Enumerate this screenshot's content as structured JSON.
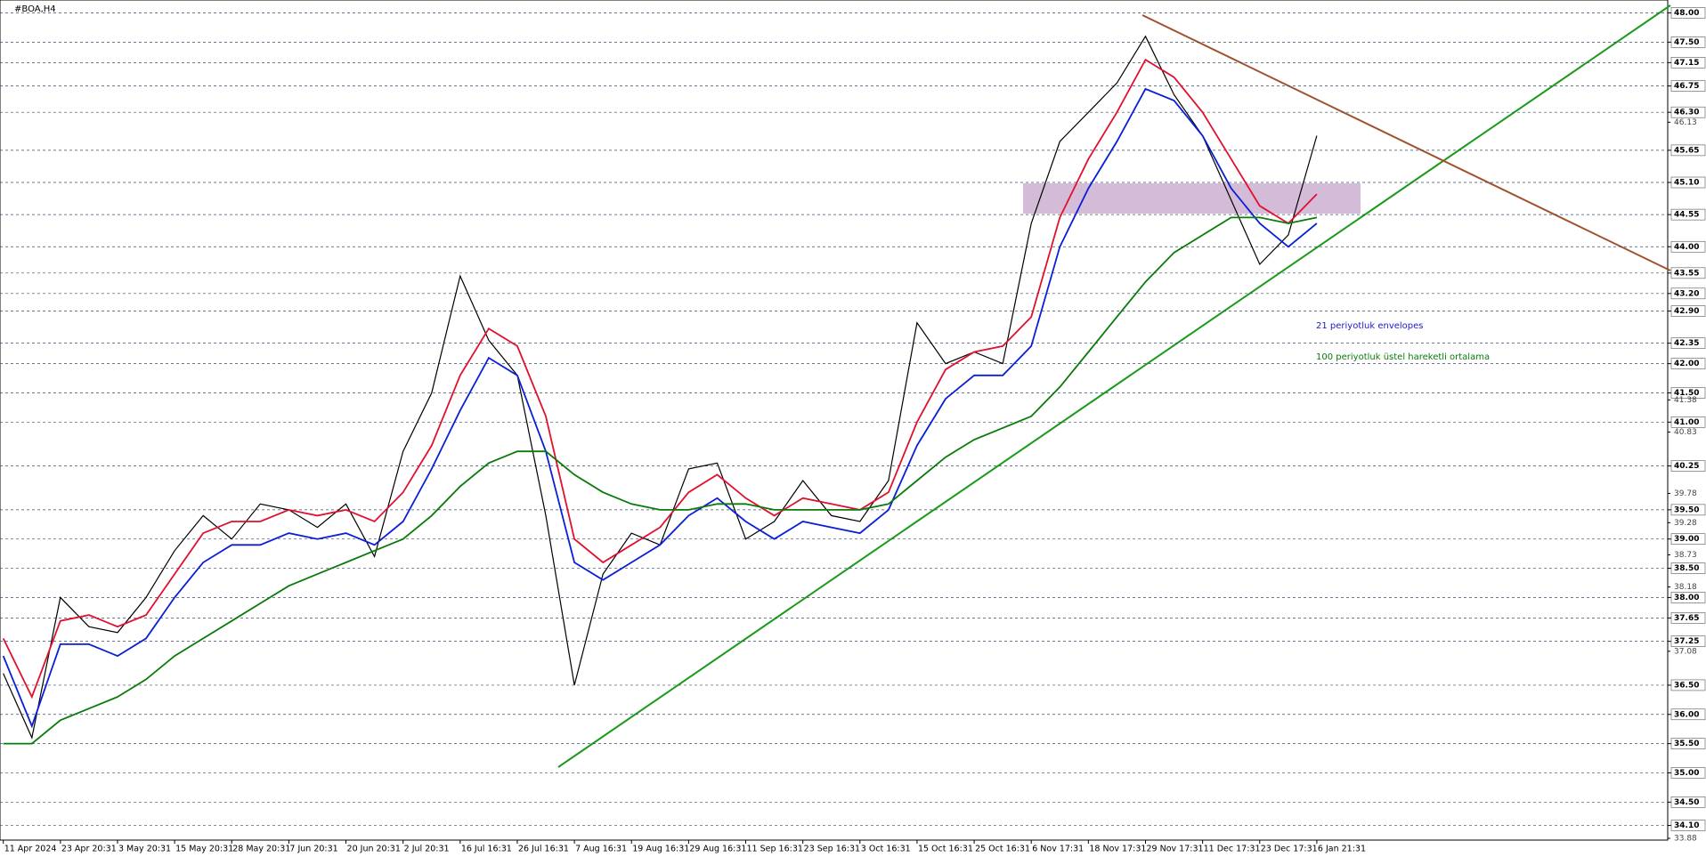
{
  "chart_data": {
    "type": "line",
    "title": "#BOA,H4",
    "categories": [
      "11 Apr 2024",
      null,
      "23 Apr 20:31",
      null,
      "3 May 20:31",
      null,
      "15 May 20:31",
      null,
      "28 May 20:31",
      null,
      "7 Jun 20:31",
      null,
      "20 Jun 20:31",
      null,
      "2 Jul 20:31",
      null,
      "16 Jul 16:31",
      null,
      "26 Jul 16:31",
      null,
      "7 Aug 16:31",
      null,
      "19 Aug 16:31",
      null,
      "29 Aug 16:31",
      null,
      "11 Sep 16:31",
      null,
      "23 Sep 16:31",
      null,
      "3 Oct 16:31",
      null,
      "15 Oct 16:31",
      null,
      "25 Oct 16:31",
      null,
      "6 Nov 17:31",
      null,
      "18 Nov 17:31",
      null,
      "29 Nov 17:31",
      null,
      "11 Dec 17:31",
      null,
      "23 Dec 17:31",
      null,
      "6 Jan 21:31"
    ],
    "series": [
      {
        "name": "#BOA",
        "color": "#000000",
        "values": [
          36.7,
          35.6,
          38.0,
          37.5,
          37.4,
          38.0,
          38.8,
          39.4,
          39.0,
          39.6,
          39.5,
          39.2,
          39.6,
          38.7,
          40.5,
          41.5,
          43.5,
          42.4,
          41.8,
          39.4,
          36.5,
          38.4,
          39.1,
          38.9,
          40.2,
          40.3,
          39.0,
          39.3,
          40.0,
          39.4,
          39.3,
          40.0,
          42.7,
          42.0,
          42.2,
          42.0,
          44.4,
          45.8,
          46.3,
          46.8,
          47.6,
          46.6,
          45.9,
          44.8,
          43.7,
          44.2,
          45.9
        ]
      },
      {
        "name": "21 periyotluk envelopes",
        "color": "#e0102f",
        "values": [
          37.3,
          36.3,
          37.6,
          37.7,
          37.5,
          37.7,
          38.4,
          39.1,
          39.3,
          39.3,
          39.5,
          39.4,
          39.5,
          39.3,
          39.8,
          40.6,
          41.8,
          42.6,
          42.3,
          41.1,
          39.0,
          38.6,
          38.9,
          39.2,
          39.8,
          40.1,
          39.7,
          39.4,
          39.7,
          39.6,
          39.5,
          39.8,
          41.0,
          41.9,
          42.2,
          42.3,
          42.8,
          44.5,
          45.5,
          46.3,
          47.2,
          46.9,
          46.3,
          45.5,
          44.7,
          44.4,
          44.9
        ]
      },
      {
        "name": "21 periyotluk envelopes",
        "color": "#0a1fd6",
        "values": [
          37.0,
          35.8,
          37.2,
          37.2,
          37.0,
          37.3,
          38.0,
          38.6,
          38.9,
          38.9,
          39.1,
          39.0,
          39.1,
          38.9,
          39.3,
          40.2,
          41.2,
          42.1,
          41.8,
          40.5,
          38.6,
          38.3,
          38.6,
          38.9,
          39.4,
          39.7,
          39.3,
          39.0,
          39.3,
          39.2,
          39.1,
          39.5,
          40.6,
          41.4,
          41.8,
          41.8,
          42.3,
          44.0,
          45.0,
          45.8,
          46.7,
          46.5,
          45.9,
          45.0,
          44.4,
          44.0,
          44.4
        ]
      },
      {
        "name": "100 periyotluk üstel hareketli ortalama",
        "color": "#0a7a0a",
        "values": [
          35.5,
          35.5,
          35.9,
          36.1,
          36.3,
          36.6,
          37.0,
          37.3,
          37.6,
          37.9,
          38.2,
          38.4,
          38.6,
          38.8,
          39.0,
          39.4,
          39.9,
          40.3,
          40.5,
          40.5,
          40.1,
          39.8,
          39.6,
          39.5,
          39.5,
          39.6,
          39.6,
          39.5,
          39.5,
          39.5,
          39.5,
          39.6,
          40.0,
          40.4,
          40.7,
          40.9,
          41.1,
          41.6,
          42.2,
          42.8,
          43.4,
          43.9,
          44.2,
          44.5,
          44.5,
          44.4,
          44.5
        ]
      }
    ],
    "annotations": [
      "21 periyotluk envelopes",
      "100 periyotluk üstel hareketli ortalama"
    ],
    "ylim": [
      33.85,
      48.16
    ],
    "yticks": [
      {
        "value": 48,
        "label": "48.00"
      },
      {
        "value": 47.5,
        "label": "47.50"
      },
      {
        "value": 47.15,
        "label": "47.15"
      },
      {
        "value": 46.75,
        "label": "46.75"
      },
      {
        "value": 46.3,
        "label": "46.30"
      },
      {
        "value": 45.65,
        "label": "45.65"
      },
      {
        "value": 45.1,
        "label": "45.10"
      },
      {
        "value": 44.55,
        "label": "44.55"
      },
      {
        "value": 44,
        "label": "44.00"
      },
      {
        "value": 43.55,
        "label": "43.55"
      },
      {
        "value": 43.2,
        "label": "43.20"
      },
      {
        "value": 42.9,
        "label": "42.90"
      },
      {
        "value": 42.35,
        "label": "42.35"
      },
      {
        "value": 42,
        "label": "42.00"
      },
      {
        "value": 41.5,
        "label": "41.50"
      },
      {
        "value": 41,
        "label": "41.00"
      },
      {
        "value": 40.25,
        "label": "40.25"
      },
      {
        "value": 39.5,
        "label": "39.50"
      },
      {
        "value": 39,
        "label": "39.00"
      },
      {
        "value": 38.5,
        "label": "38.50"
      },
      {
        "value": 38,
        "label": "38.00"
      },
      {
        "value": 37.65,
        "label": "37.65"
      },
      {
        "value": 37.25,
        "label": "37.25"
      },
      {
        "value": 36.5,
        "label": "36.50"
      },
      {
        "value": 36,
        "label": "36.00"
      },
      {
        "value": 35.5,
        "label": "35.50"
      },
      {
        "value": 35,
        "label": "35.00"
      },
      {
        "value": 34.5,
        "label": "34.50"
      },
      {
        "value": 34.1,
        "label": "34.10"
      }
    ],
    "minor_yticks": [
      {
        "value": 46.13,
        "label": "46.13"
      },
      {
        "value": 41.38,
        "label": "41.38"
      },
      {
        "value": 40.83,
        "label": "40.83"
      },
      {
        "value": 39.78,
        "label": "39.78"
      },
      {
        "value": 39.28,
        "label": "39.28"
      },
      {
        "value": 38.73,
        "label": "38.73"
      },
      {
        "value": 38.18,
        "label": "38.18"
      },
      {
        "value": 37.08,
        "label": "37.08"
      },
      {
        "value": 33.88,
        "label": "33.88"
      }
    ],
    "grid": true
  }
}
